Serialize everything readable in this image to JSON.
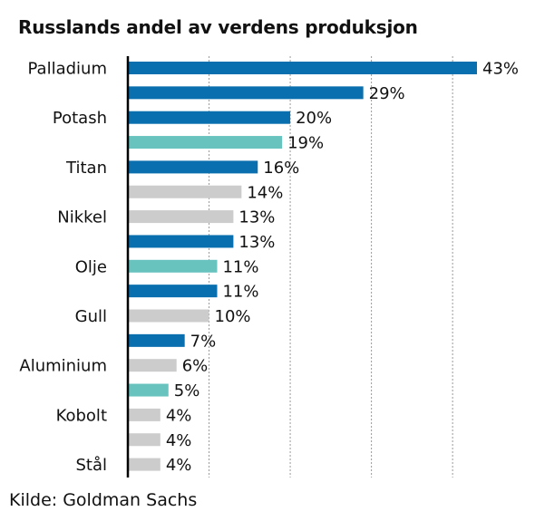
{
  "chart_data": {
    "type": "bar",
    "orientation": "horizontal",
    "title": "Russlands andel av verdens produksjon",
    "categories": [
      "Palladium",
      "",
      "Potash",
      "",
      "Titan",
      "",
      "Nikkel",
      "",
      "Olje",
      "",
      "Gull",
      "",
      "Aluminium",
      "",
      "Kobolt",
      "",
      "Stål"
    ],
    "values": [
      43,
      29,
      20,
      19,
      16,
      14,
      13,
      13,
      11,
      11,
      10,
      7,
      6,
      5,
      4,
      4,
      4
    ],
    "value_labels": [
      "43%",
      "29%",
      "20%",
      "19%",
      "16%",
      "14%",
      "13%",
      "13%",
      "11%",
      "11%",
      "10%",
      "7%",
      "6%",
      "5%",
      "4%",
      "4%",
      "4%"
    ],
    "bar_colors": [
      "#0a6fae",
      "#0a6fae",
      "#0a6fae",
      "#68c3bf",
      "#0a6fae",
      "#cccccc",
      "#cccccc",
      "#0a6fae",
      "#68c3bf",
      "#0a6fae",
      "#cccccc",
      "#0a6fae",
      "#cccccc",
      "#68c3bf",
      "#cccccc",
      "#cccccc",
      "#cccccc"
    ],
    "xlim": [
      0,
      43
    ],
    "grid_values": [
      10,
      20,
      30,
      40
    ],
    "grid": "vertical-dotted",
    "legend": "none",
    "unit": "%"
  },
  "source": "Kilde: Goldman Sachs"
}
